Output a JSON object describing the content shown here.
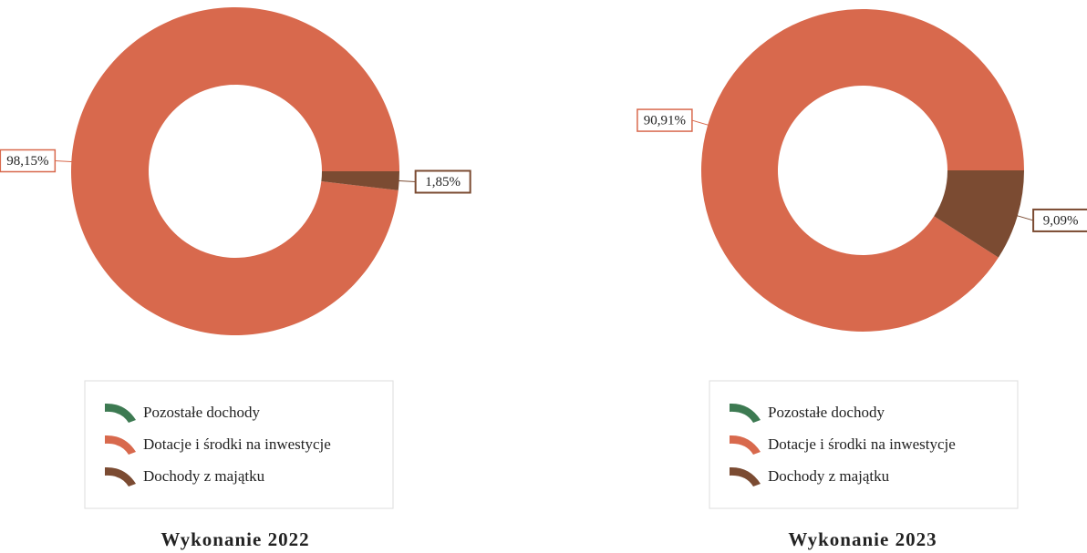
{
  "chart_data": [
    {
      "type": "pie",
      "title": "Wykonanie 2022",
      "categories": [
        "Pozostałe dochody",
        "Dotacje i środki na inwestycje",
        "Dochody z majątku"
      ],
      "values": [
        0,
        98.15,
        1.85
      ],
      "value_labels": [
        null,
        "98,15%",
        "1,85%"
      ],
      "colors": [
        "#3d7a52",
        "#d8694d",
        "#7b4b32"
      ]
    },
    {
      "type": "pie",
      "title": "Wykonanie 2023",
      "categories": [
        "Pozostałe dochody",
        "Dotacje i środki na inwestycje",
        "Dochody z majątku"
      ],
      "values": [
        0,
        90.91,
        9.09
      ],
      "value_labels": [
        null,
        "90,91%",
        "9,09%"
      ],
      "colors": [
        "#3d7a52",
        "#d8694d",
        "#7b4b32"
      ]
    }
  ]
}
